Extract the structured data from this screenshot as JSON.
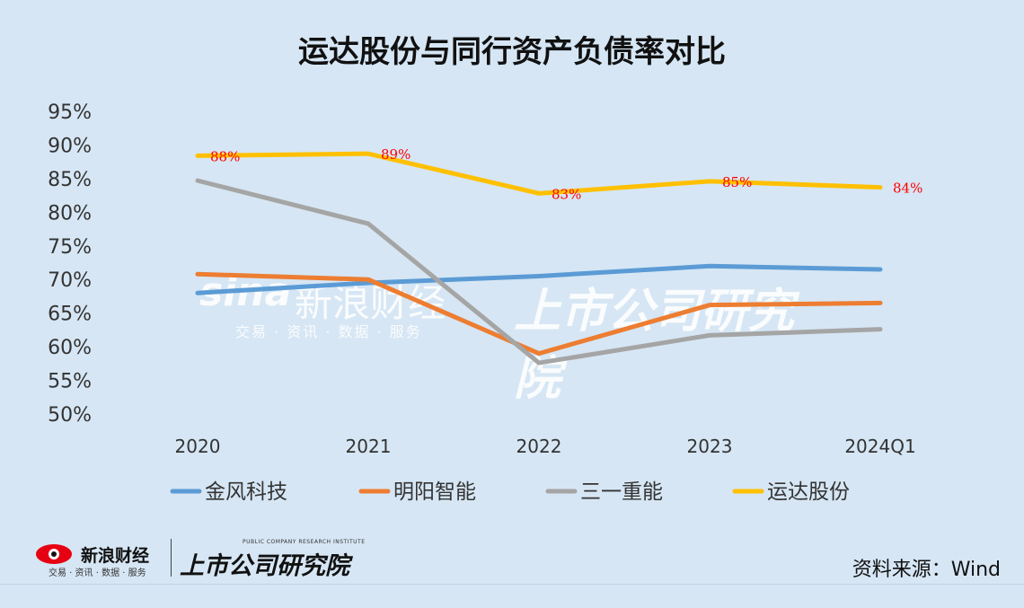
{
  "page": {
    "title": "运达股份与同行资产负债率对比",
    "source": "资料来源：Wind"
  },
  "branding": {
    "sina_logo_text": "sina",
    "sina_name": "新浪财经",
    "sina_sub": "交易 · 资讯 · 数据 · 服务",
    "institute_en": "PUBLIC COMPANY RESEARCH INSTITUTE",
    "institute_cn": "上市公司研究院"
  },
  "chart_data": {
    "type": "line",
    "title": "运达股份与同行资产负债率对比",
    "categories": [
      "2020",
      "2021",
      "2022",
      "2023",
      "2024Q1"
    ],
    "yticks": [
      "50%",
      "55%",
      "60%",
      "65%",
      "70%",
      "75%",
      "80%",
      "85%",
      "90%",
      "95%"
    ],
    "ylim": [
      50,
      95
    ],
    "grid": false,
    "legend_position": "bottom",
    "series": [
      {
        "name": "金风科技",
        "color": "#5b9bd5",
        "values": [
          68.0,
          69.5,
          70.5,
          72.0,
          71.5
        ]
      },
      {
        "name": "明阳智能",
        "color": "#ed7d31",
        "values": [
          70.8,
          70.0,
          59.0,
          66.2,
          66.5
        ]
      },
      {
        "name": "三一重能",
        "color": "#a5a5a5",
        "values": [
          84.7,
          78.3,
          57.6,
          61.7,
          62.6
        ]
      },
      {
        "name": "运达股份",
        "color": "#ffc000",
        "values": [
          88.4,
          88.7,
          82.8,
          84.6,
          83.7
        ],
        "data_labels": [
          "88%",
          "89%",
          "83%",
          "85%",
          "84%"
        ],
        "label_color": "#ff0000"
      }
    ]
  }
}
